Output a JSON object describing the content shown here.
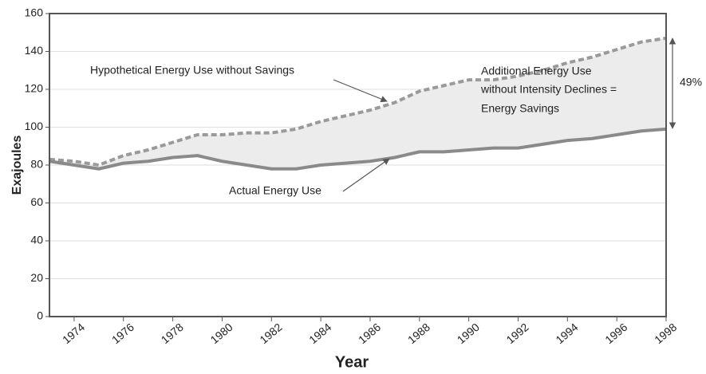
{
  "chart_data": {
    "type": "line",
    "y_label": "Exajoules",
    "x_label": "Year",
    "x": [
      1973,
      1974,
      1975,
      1976,
      1977,
      1978,
      1979,
      1980,
      1981,
      1982,
      1983,
      1984,
      1985,
      1986,
      1987,
      1988,
      1989,
      1990,
      1991,
      1992,
      1993,
      1994,
      1995,
      1996,
      1997,
      1998
    ],
    "series": [
      {
        "name": "Hypothetical Energy Use without Savings",
        "color": "#9a9a9a",
        "dashed": true,
        "values": [
          83,
          82,
          80,
          85,
          88,
          92,
          96,
          96,
          97,
          97,
          99,
          103,
          106,
          109,
          113,
          119,
          122,
          125,
          125,
          127,
          130,
          134,
          137,
          141,
          145,
          147
        ]
      },
      {
        "name": "Actual Energy Use",
        "color": "#8a8a8a",
        "dashed": false,
        "values": [
          82,
          80,
          78,
          81,
          82,
          84,
          85,
          82,
          80,
          78,
          78,
          80,
          81,
          82,
          84,
          87,
          87,
          88,
          89,
          89,
          91,
          93,
          94,
          96,
          98,
          99
        ]
      }
    ],
    "xlim": [
      1973,
      1998
    ],
    "xticks": [
      1974,
      1976,
      1978,
      1980,
      1982,
      1984,
      1986,
      1988,
      1990,
      1992,
      1994,
      1996,
      1998
    ],
    "ylim": [
      0,
      160
    ],
    "yticks": [
      0,
      20,
      40,
      60,
      80,
      100,
      120,
      140,
      160
    ],
    "grid": true,
    "annotations": {
      "savings_text": [
        "Additional Energy Use",
        "without Intensity Declines =",
        "Energy Savings"
      ],
      "percent": "49%"
    }
  }
}
